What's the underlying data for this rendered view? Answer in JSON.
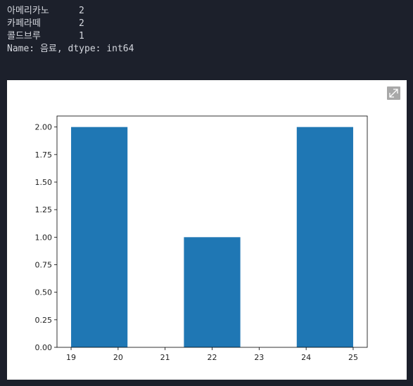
{
  "output": {
    "rows": [
      [
        "아메리카노",
        2
      ],
      [
        "카페라떼",
        2
      ],
      [
        "콜드브루",
        1
      ]
    ],
    "footer": "Name: 음료, dtype: int64"
  },
  "chart_data": {
    "type": "histogram",
    "bins": [
      19,
      20.2,
      21.4,
      22.6,
      23.8,
      25
    ],
    "values": [
      2,
      0,
      1,
      0,
      2
    ],
    "color": "#1f77b4",
    "xlim": [
      18.7,
      25.3
    ],
    "xticks": [
      19,
      20,
      21,
      22,
      23,
      24,
      25
    ],
    "ylim": [
      0,
      2.1
    ],
    "yticks": [
      {
        "value": 0,
        "label": "0.00"
      },
      {
        "value": 0.25,
        "label": "0.25"
      },
      {
        "value": 0.5,
        "label": "0.50"
      },
      {
        "value": 0.75,
        "label": "0.75"
      },
      {
        "value": 1,
        "label": "1.00"
      },
      {
        "value": 1.25,
        "label": "1.25"
      },
      {
        "value": 1.5,
        "label": "1.50"
      },
      {
        "value": 1.75,
        "label": "1.75"
      },
      {
        "value": 2,
        "label": "2.00"
      }
    ]
  }
}
